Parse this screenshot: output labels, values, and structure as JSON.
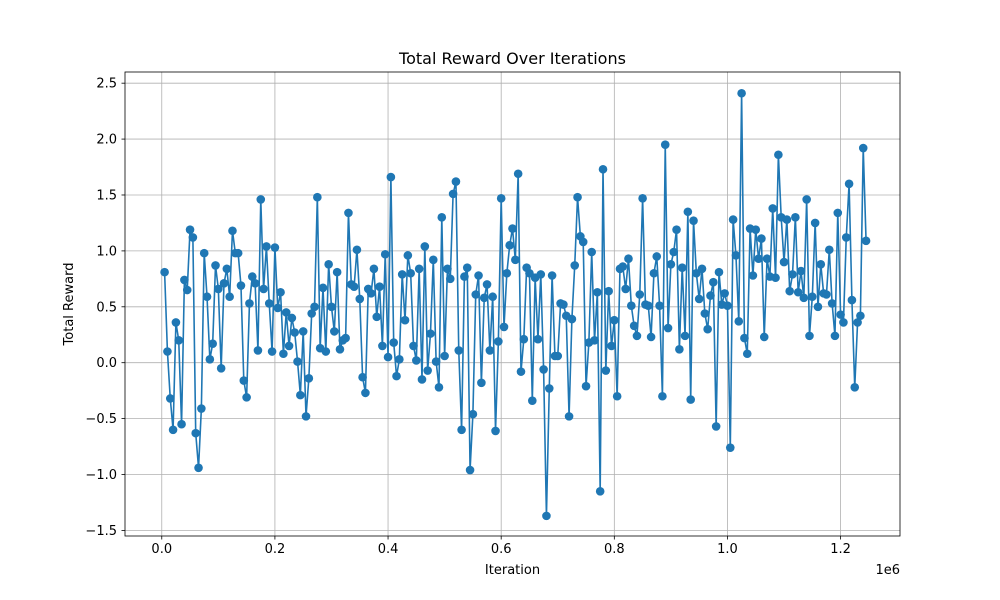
{
  "chart_data": {
    "type": "line",
    "title": "Total Reward Over Iterations",
    "xlabel": "Iteration",
    "ylabel": "Total Reward",
    "x_offset_label": "1e6",
    "xlim": [
      -65000,
      1305000
    ],
    "ylim": [
      -1.55,
      2.6
    ],
    "x_ticks": [
      0,
      200000,
      400000,
      600000,
      800000,
      1000000,
      1200000
    ],
    "x_tick_labels": [
      "0.0",
      "0.2",
      "0.4",
      "0.6",
      "0.8",
      "1.0",
      "1.2"
    ],
    "y_ticks": [
      -1.5,
      -1.0,
      -0.5,
      0.0,
      0.5,
      1.0,
      1.5,
      2.0,
      2.5
    ],
    "y_tick_labels": [
      "−1.5",
      "−1.0",
      "−0.5",
      "0.0",
      "0.5",
      "1.0",
      "1.5",
      "2.0",
      "2.5"
    ],
    "grid": true,
    "marker": "circle",
    "color": "#1f77b4",
    "series": [
      {
        "x": [
          5000,
          10000,
          15000,
          20000,
          25000,
          30000,
          35000,
          40000,
          45000,
          50000,
          55000,
          60000,
          65000,
          70000,
          75000,
          80000,
          85000,
          90000,
          95000,
          100000,
          105000,
          110000,
          115000,
          120000,
          125000,
          130000,
          135000,
          140000,
          145000,
          150000,
          155000,
          160000,
          165000,
          170000,
          175000,
          180000,
          185000,
          190000,
          195000,
          200000,
          205000,
          210000,
          215000,
          220000,
          225000,
          230000,
          235000,
          240000,
          245000,
          250000,
          255000,
          260000,
          265000,
          270000,
          275000,
          280000,
          285000,
          290000,
          295000,
          300000,
          305000,
          310000,
          315000,
          320000,
          325000,
          330000,
          335000,
          340000,
          345000,
          350000,
          355000,
          360000,
          365000,
          370000,
          375000,
          380000,
          385000,
          390000,
          395000,
          400000,
          405000,
          410000,
          415000,
          420000,
          425000,
          430000,
          435000,
          440000,
          445000,
          450000,
          455000,
          460000,
          465000,
          470000,
          475000,
          480000,
          485000,
          490000,
          495000,
          500000,
          505000,
          510000,
          515000,
          520000,
          525000,
          530000,
          535000,
          540000,
          545000,
          550000,
          555000,
          560000,
          565000,
          570000,
          575000,
          580000,
          585000,
          590000,
          595000,
          600000,
          605000,
          610000,
          615000,
          620000,
          625000,
          630000,
          635000,
          640000,
          645000,
          650000,
          655000,
          660000,
          665000,
          670000,
          675000,
          680000,
          685000,
          690000,
          695000,
          700000,
          705000,
          710000,
          715000,
          720000,
          725000,
          730000,
          735000,
          740000,
          745000,
          750000,
          755000,
          760000,
          765000,
          770000,
          775000,
          780000,
          785000,
          790000,
          795000,
          800000,
          805000,
          810000,
          815000,
          820000,
          825000,
          830000,
          835000,
          840000,
          845000,
          850000,
          855000,
          860000,
          865000,
          870000,
          875000,
          880000,
          885000,
          890000,
          895000,
          900000,
          905000,
          910000,
          915000,
          920000,
          925000,
          930000,
          935000,
          940000,
          945000,
          950000,
          955000,
          960000,
          965000,
          970000,
          975000,
          980000,
          985000,
          990000,
          995000,
          1000000,
          1005000,
          1010000,
          1015000,
          1020000,
          1025000,
          1030000,
          1035000,
          1040000,
          1045000,
          1050000,
          1055000,
          1060000,
          1065000,
          1070000,
          1075000,
          1080000,
          1085000,
          1090000,
          1095000,
          1100000,
          1105000,
          1110000,
          1115000,
          1120000,
          1125000,
          1130000,
          1135000,
          1140000,
          1145000,
          1150000,
          1155000,
          1160000,
          1165000,
          1170000,
          1175000,
          1180000,
          1185000,
          1190000,
          1195000,
          1200000,
          1205000,
          1210000,
          1215000,
          1220000,
          1225000,
          1230000,
          1235000,
          1240000,
          1245000
        ],
        "y": [
          0.81,
          0.1,
          -0.32,
          -0.6,
          0.36,
          0.2,
          -0.55,
          0.74,
          0.65,
          1.19,
          1.12,
          -0.63,
          -0.94,
          -0.41,
          0.98,
          0.59,
          0.03,
          0.17,
          0.87,
          0.66,
          -0.05,
          0.71,
          0.84,
          0.59,
          1.18,
          0.98,
          0.98,
          0.69,
          -0.16,
          -0.31,
          0.53,
          0.77,
          0.71,
          0.11,
          1.46,
          0.66,
          1.04,
          0.53,
          0.1,
          1.03,
          0.49,
          0.63,
          0.08,
          0.45,
          0.15,
          0.4,
          0.27,
          0.01,
          -0.29,
          0.28,
          -0.48,
          -0.14,
          0.44,
          0.5,
          1.48,
          0.13,
          0.67,
          0.1,
          0.88,
          0.5,
          0.28,
          0.81,
          0.12,
          0.2,
          0.22,
          1.34,
          0.7,
          0.68,
          1.01,
          0.57,
          -0.13,
          -0.27,
          0.66,
          0.62,
          0.84,
          0.41,
          0.68,
          0.15,
          0.97,
          0.05,
          1.66,
          0.18,
          -0.12,
          0.03,
          0.79,
          0.38,
          0.96,
          0.8,
          0.15,
          0.02,
          0.84,
          -0.15,
          1.04,
          -0.07,
          0.26,
          0.92,
          0.01,
          -0.22,
          1.3,
          0.06,
          0.84,
          0.75,
          1.51,
          1.62,
          0.11,
          -0.6,
          0.77,
          0.85,
          -0.96,
          -0.46,
          0.61,
          0.78,
          -0.18,
          0.58,
          0.7,
          0.11,
          0.59,
          -0.61,
          0.19,
          1.47,
          0.32,
          0.8,
          1.05,
          1.2,
          0.92,
          1.69,
          -0.08,
          0.21,
          0.85,
          0.8,
          -0.34,
          0.76,
          0.21,
          0.79,
          -0.06,
          -1.37,
          -0.23,
          0.78,
          0.06,
          0.06,
          0.53,
          0.52,
          0.42,
          -0.48,
          0.39,
          0.87,
          1.48,
          1.13,
          1.08,
          -0.21,
          0.18,
          0.99,
          0.2,
          0.63,
          -1.15,
          1.73,
          -0.07,
          0.64,
          0.15,
          0.38,
          -0.3,
          0.84,
          0.86,
          0.66,
          0.93,
          0.51,
          0.33,
          0.24,
          0.61,
          1.47,
          0.52,
          0.51,
          0.23,
          0.8,
          0.95,
          0.51,
          -0.3,
          1.95,
          0.31,
          0.88,
          0.99,
          1.19,
          0.12,
          0.85,
          0.24,
          1.35,
          -0.33,
          1.27,
          0.8,
          0.57,
          0.84,
          0.44,
          0.3,
          0.6,
          0.72,
          -0.57,
          0.81,
          0.52,
          0.62,
          0.51,
          -0.76,
          1.28,
          0.96,
          0.37,
          2.41,
          0.22,
          0.08,
          1.2,
          0.78,
          1.19,
          0.93,
          1.11,
          0.23,
          0.93,
          0.77,
          1.38,
          0.76,
          1.86,
          1.3,
          0.9,
          1.28,
          0.64,
          0.79,
          1.3,
          0.63,
          0.82,
          0.58,
          1.46,
          0.24,
          0.59,
          1.25,
          0.5,
          0.88,
          0.62,
          0.61,
          1.01,
          0.53,
          0.24,
          1.34,
          0.43,
          0.36,
          1.12,
          1.6,
          0.56,
          -0.22,
          0.36,
          0.42,
          1.92,
          1.09
        ]
      }
    ]
  }
}
